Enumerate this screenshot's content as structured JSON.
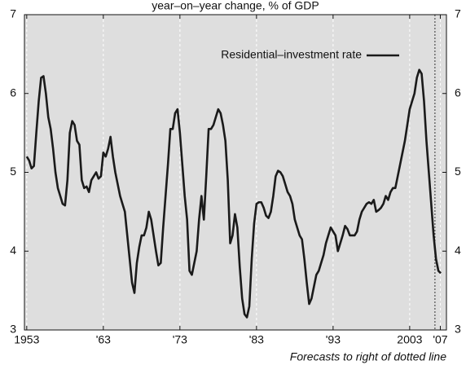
{
  "chart_data": {
    "type": "line",
    "subtitle": "year–on–year change, % of GDP",
    "annotation": "Forecasts to right of dotted line",
    "forecast_start": 2006.3,
    "xlim": [
      1952.7,
      2007.8
    ],
    "xticks": [
      1953,
      {
        "value": 1963,
        "label": "'63"
      },
      {
        "value": 1973,
        "label": "'73"
      },
      {
        "value": 1983,
        "label": "'83"
      },
      {
        "value": 1993,
        "label": "'93"
      },
      2003,
      {
        "value": 2007,
        "label": "'07"
      }
    ],
    "ylim": [
      3,
      7
    ],
    "yticks": [
      3,
      4,
      5,
      6,
      7
    ],
    "y2lim": [
      3,
      7
    ],
    "y2ticks": [
      3,
      4,
      5,
      6,
      7
    ],
    "grid": true,
    "background": "#dedede",
    "legend": "top-right",
    "x": [
      1953,
      1953.3125,
      1953.625,
      1953.9375,
      1954.25,
      1954.5625,
      1954.875,
      1955.1875,
      1955.5,
      1955.8125,
      1956.125,
      1956.4375,
      1956.75,
      1957.0625,
      1957.375,
      1957.6875,
      1958,
      1958.3125,
      1958.625,
      1958.9375,
      1959.25,
      1959.5625,
      1959.875,
      1960.1875,
      1960.5,
      1960.8125,
      1961.125,
      1961.4375,
      1961.75,
      1962.0625,
      1962.375,
      1962.6875,
      1963,
      1963.3125,
      1963.625,
      1963.9375,
      1964.25,
      1964.5625,
      1964.875,
      1965.1875,
      1965.5,
      1965.8125,
      1966.125,
      1966.4375,
      1966.75,
      1967.0625,
      1967.375,
      1967.6875,
      1968,
      1968.3125,
      1968.625,
      1968.9375,
      1969.25,
      1969.5625,
      1969.875,
      1970.1875,
      1970.5,
      1970.8125,
      1971.125,
      1971.4375,
      1971.75,
      1972.0625,
      1972.375,
      1972.6875,
      1973,
      1973.3125,
      1973.625,
      1973.9375,
      1974.25,
      1974.5625,
      1974.875,
      1975.1875,
      1975.5,
      1975.8125,
      1976.125,
      1976.4375,
      1976.75,
      1977.0625,
      1977.375,
      1977.6875,
      1978,
      1978.3125,
      1978.625,
      1978.9375,
      1979.25,
      1979.5625,
      1979.875,
      1980.1875,
      1980.5,
      1980.8125,
      1981.125,
      1981.4375,
      1981.75,
      1982.0625,
      1982.375,
      1982.6875,
      1983,
      1983.3125,
      1983.625,
      1983.9375,
      1984.25,
      1984.5625,
      1984.875,
      1985.1875,
      1985.5,
      1985.8125,
      1986.125,
      1986.4375,
      1986.75,
      1987.0625,
      1987.375,
      1987.6875,
      1988,
      1988.3125,
      1988.625,
      1988.9375,
      1989.25,
      1989.5625,
      1989.875,
      1990.1875,
      1990.5,
      1990.8125,
      1991.125,
      1991.4375,
      1991.75,
      1992.0625,
      1992.375,
      1992.6875,
      1993,
      1993.3125,
      1993.625,
      1993.9375,
      1994.25,
      1994.5625,
      1994.875,
      1995.1875,
      1995.5,
      1995.8125,
      1996.125,
      1996.4375,
      1996.75,
      1997.0625,
      1997.375,
      1997.6875,
      1998,
      1998.3125,
      1998.625,
      1998.9375,
      1999.25,
      1999.5625,
      1999.875,
      2000.1875,
      2000.5,
      2000.8125,
      2001.125,
      2001.4375,
      2001.75,
      2002.0625,
      2002.375,
      2002.6875,
      2003,
      2003.3125,
      2003.625,
      2003.9375,
      2004.25,
      2004.5625,
      2004.875,
      2005.1875,
      2005.5,
      2005.8125,
      2006.125,
      2006.4375,
      2006.75,
      2007.0625
    ],
    "series": [
      {
        "name": "Residential–investment rate",
        "color": "#1a1a1a",
        "values": [
          5.2,
          5.15,
          5.05,
          5.08,
          5.5,
          5.9,
          6.2,
          6.22,
          6.0,
          5.7,
          5.55,
          5.3,
          5.0,
          4.8,
          4.7,
          4.6,
          4.58,
          4.9,
          5.5,
          5.65,
          5.6,
          5.4,
          5.35,
          4.9,
          4.8,
          4.82,
          4.75,
          4.9,
          4.95,
          5.0,
          4.92,
          4.95,
          5.25,
          5.2,
          5.3,
          5.45,
          5.2,
          5.0,
          4.85,
          4.7,
          4.6,
          4.5,
          4.2,
          3.9,
          3.6,
          3.47,
          3.85,
          4.05,
          4.2,
          4.2,
          4.3,
          4.5,
          4.4,
          4.2,
          4.0,
          3.82,
          3.85,
          4.3,
          4.7,
          5.1,
          5.55,
          5.55,
          5.75,
          5.8,
          5.5,
          5.1,
          4.7,
          4.4,
          3.75,
          3.7,
          3.85,
          4.0,
          4.4,
          4.7,
          4.4,
          4.95,
          5.55,
          5.55,
          5.6,
          5.7,
          5.8,
          5.75,
          5.6,
          5.4,
          4.9,
          4.1,
          4.2,
          4.47,
          4.3,
          3.8,
          3.4,
          3.2,
          3.16,
          3.3,
          3.9,
          4.35,
          4.6,
          4.62,
          4.62,
          4.55,
          4.45,
          4.42,
          4.5,
          4.7,
          4.95,
          5.02,
          5.0,
          4.95,
          4.85,
          4.75,
          4.7,
          4.6,
          4.4,
          4.3,
          4.2,
          4.15,
          3.9,
          3.6,
          3.33,
          3.4,
          3.55,
          3.7,
          3.75,
          3.85,
          3.95,
          4.1,
          4.2,
          4.3,
          4.25,
          4.2,
          4.0,
          4.1,
          4.2,
          4.32,
          4.28,
          4.2,
          4.2,
          4.2,
          4.25,
          4.4,
          4.5,
          4.55,
          4.6,
          4.62,
          4.6,
          4.65,
          4.5,
          4.52,
          4.55,
          4.6,
          4.7,
          4.65,
          4.75,
          4.8,
          4.8,
          4.95,
          5.1,
          5.25,
          5.4,
          5.6,
          5.8,
          5.9,
          6.0,
          6.2,
          6.3,
          6.25,
          5.9,
          5.4,
          5.0,
          4.6,
          4.2,
          3.9,
          3.75,
          3.72
        ]
      }
    ]
  }
}
